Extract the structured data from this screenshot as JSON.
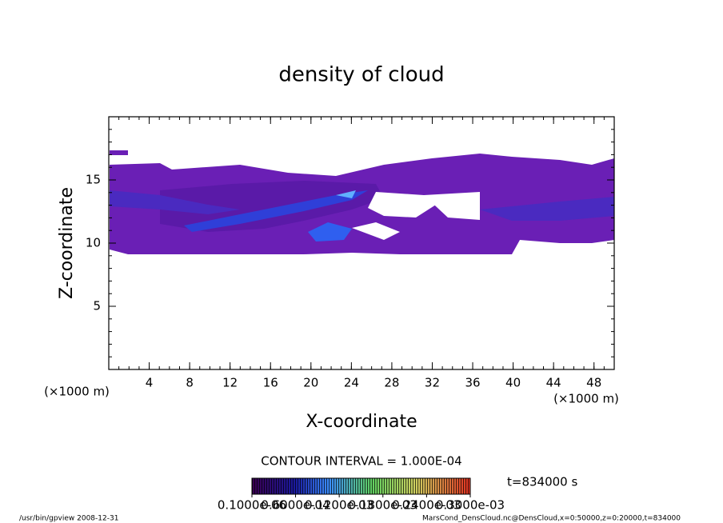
{
  "chart_data": {
    "type": "contour",
    "title": "density of cloud",
    "x_label": "X-coordinate",
    "y_label": "Z-coordinate",
    "y_unit": "(×1000 m)",
    "x_unit": "(×1000 m)",
    "xlim": [
      0,
      50
    ],
    "xticks": [
      4,
      8,
      12,
      16,
      20,
      24,
      28,
      32,
      36,
      40,
      44,
      48
    ],
    "ylim": [
      0,
      20
    ],
    "yticks": [
      5,
      10,
      15
    ],
    "contour_interval": "CONTOUR INTERVAL = 1.000E-04",
    "time": "t=834000 s",
    "colorbar": {
      "lim": [
        1e-07,
        0.0003
      ],
      "ticks": [
        {
          "value": 1e-07,
          "label": "0.1000e-06"
        },
        {
          "value": 6e-05,
          "label": "0.6000e-04"
        },
        {
          "value": 0.00012,
          "label": "0.1200e-03"
        },
        {
          "value": 0.00018,
          "label": "0.1800e-03"
        },
        {
          "value": 0.00024,
          "label": "0.2400e-03"
        },
        {
          "value": 0.0003,
          "label": "0.3000e-03"
        }
      ]
    },
    "footer_left": "/usr/bin/gpview  2008-12-31",
    "footer_right": "MarsCond_DensCloud.nc@DensCloud,x=0:50000,z=0:20000,t=834000"
  }
}
